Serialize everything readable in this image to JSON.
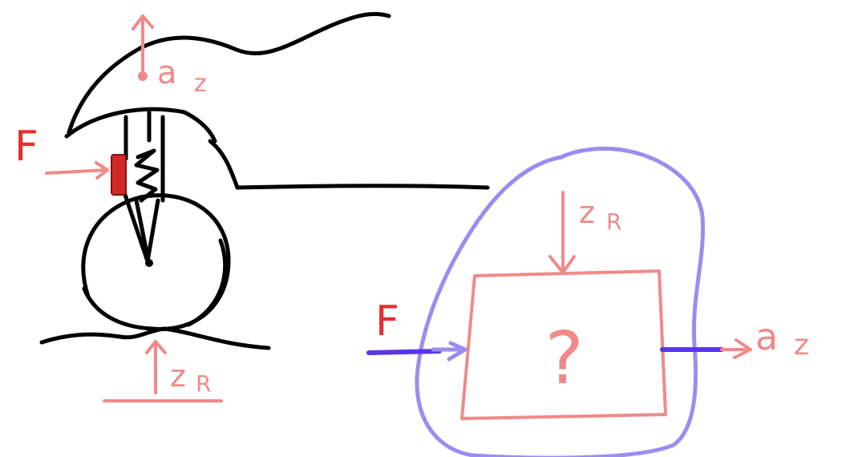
{
  "colors": {
    "background": "#ffffff",
    "black_ink": "#000000",
    "pink_ink": "#f08a8a",
    "red_ink": "#e03030",
    "blue_ink": "#9b8cf0",
    "dark_blue_ink": "#5b35e8"
  },
  "left_sketch": {
    "force_label": "F",
    "body_accel_label": "a",
    "body_accel_subscript": "z",
    "road_input_label": "z",
    "road_input_subscript": "R"
  },
  "right_sketch": {
    "input_force_label": "F",
    "road_input_label": "z",
    "road_input_subscript": "R",
    "unknown_label": "?",
    "output_label": "a",
    "output_subscript": "z"
  }
}
